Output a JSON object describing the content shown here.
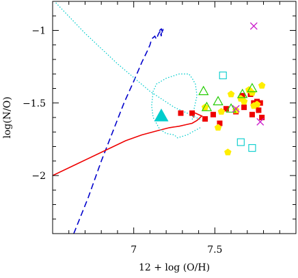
{
  "chart_data": {
    "type": "scatter",
    "title": "",
    "xlabel": "12 + log (O/H)",
    "ylabel": "log(N/O)",
    "xlim": [
      6.5,
      8.0
    ],
    "ylim": [
      -2.4,
      -0.8
    ],
    "x_ticks": [
      7,
      7.5
    ],
    "x_tick_labels": [
      "7",
      "7.5"
    ],
    "y_ticks": [
      -1,
      -1.5,
      -2
    ],
    "y_tick_labels": [
      "−1",
      "−1.5",
      "−2"
    ],
    "grid": false,
    "legend": "none",
    "colors": {
      "red": "#ee0000",
      "yellow": "#ffee00",
      "green": "#22cc00",
      "cyan": "#00cccc",
      "magenta": "#cc22cc",
      "blue": "#0000cc"
    },
    "series": [
      {
        "marker": "filled-square",
        "color": "#ee0000",
        "x": [
          7.29,
          7.36,
          7.44,
          7.49,
          7.53,
          7.57,
          7.63,
          7.67,
          7.68,
          7.72,
          7.73,
          7.74,
          7.75,
          7.76,
          7.78,
          7.79,
          7.77
        ],
        "y": [
          -1.57,
          -1.57,
          -1.61,
          -1.58,
          -1.64,
          -1.54,
          -1.56,
          -1.45,
          -1.53,
          -1.44,
          -1.58,
          -1.5,
          -1.52,
          -1.49,
          -1.5,
          -1.6,
          -1.55
        ]
      },
      {
        "marker": "filled-pentagon",
        "color": "#ffee00",
        "x": [
          7.44,
          7.52,
          7.54,
          7.58,
          7.6,
          7.63,
          7.66,
          7.68,
          7.71,
          7.73,
          7.74,
          7.76,
          7.79
        ],
        "y": [
          -1.53,
          -1.67,
          -1.56,
          -1.84,
          -1.44,
          -1.55,
          -1.47,
          -1.49,
          -1.41,
          -1.43,
          -1.52,
          -1.51,
          -1.38
        ]
      },
      {
        "marker": "open-triangle",
        "color": "#22cc00",
        "x": [
          7.43,
          7.45,
          7.52,
          7.6,
          7.67,
          7.73
        ],
        "y": [
          -1.42,
          -1.53,
          -1.49,
          -1.54,
          -1.44,
          -1.4
        ]
      },
      {
        "marker": "open-square",
        "color": "#00cccc",
        "x": [
          7.55,
          7.66,
          7.73
        ],
        "y": [
          -1.31,
          -1.77,
          -1.81
        ]
      },
      {
        "marker": "cross",
        "color": "#cc22cc",
        "x": [
          7.74,
          7.63,
          7.78
        ],
        "y": [
          -0.97,
          -1.54,
          -1.63
        ]
      },
      {
        "marker": "filled-triangle",
        "color": "#00cccc",
        "x": [
          7.17
        ],
        "y": [
          -1.59
        ]
      }
    ],
    "lines": [
      {
        "style": "dashed",
        "color": "#0000cc",
        "x": [
          6.63,
          6.72,
          6.8,
          6.87,
          6.94,
          7.0,
          7.05,
          7.08,
          7.1,
          7.11,
          7.12,
          7.13,
          7.14,
          7.15,
          7.16,
          7.17,
          7.17,
          7.16,
          7.17,
          7.18,
          7.18
        ],
        "y": [
          -2.4,
          -2.15,
          -1.9,
          -1.7,
          -1.5,
          -1.35,
          -1.22,
          -1.15,
          -1.1,
          -1.06,
          -1.05,
          -1.04,
          -1.06,
          -1.03,
          -1.01,
          -1.0,
          -1.04,
          -1.0,
          -0.99,
          -1.02,
          -0.99
        ]
      },
      {
        "style": "solid",
        "color": "#ee0000",
        "x": [
          6.5,
          6.65,
          6.8,
          6.95,
          7.05,
          7.15,
          7.22,
          7.28,
          7.32,
          7.36,
          7.39,
          7.42,
          7.38,
          7.35,
          7.37
        ],
        "y": [
          -2.0,
          -1.92,
          -1.84,
          -1.76,
          -1.72,
          -1.69,
          -1.67,
          -1.66,
          -1.65,
          -1.64,
          -1.62,
          -1.59,
          -1.57,
          -1.56,
          -1.6
        ]
      },
      {
        "style": "dotted",
        "color": "#00cccc",
        "x": [
          6.52,
          6.7,
          6.9,
          7.1,
          7.25,
          7.35,
          7.42
        ],
        "y": [
          -0.81,
          -1.02,
          -1.23,
          -1.42,
          -1.53,
          -1.58,
          -1.62
        ]
      },
      {
        "style": "dotted",
        "color": "#00cccc",
        "x": [
          7.41,
          7.36,
          7.33,
          7.3,
          7.27,
          7.25,
          7.2,
          7.16,
          7.12,
          7.11,
          7.12,
          7.14,
          7.2,
          7.28,
          7.34,
          7.36,
          7.38,
          7.39,
          7.37,
          7.36
        ],
        "y": [
          -1.67,
          -1.7,
          -1.72,
          -1.73,
          -1.74,
          -1.72,
          -1.71,
          -1.68,
          -1.6,
          -1.52,
          -1.42,
          -1.37,
          -1.33,
          -1.3,
          -1.3,
          -1.33,
          -1.37,
          -1.45,
          -1.55,
          -1.62
        ]
      }
    ]
  }
}
